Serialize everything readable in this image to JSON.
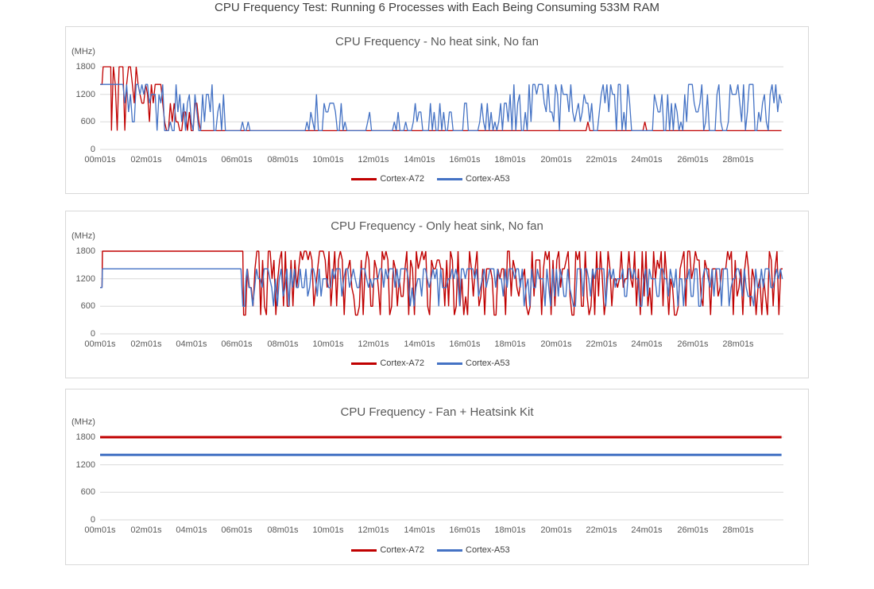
{
  "page": {
    "title": "CPU Frequency Test: Running 6 Processes with Each Being Consuming 533M RAM",
    "background": "#ffffff",
    "panel_border_color": "#d9d9d9",
    "gridline_color": "#d9d9d9",
    "axis_text_color": "#595959",
    "title_text_color": "#404040"
  },
  "chart_data": [
    {
      "type": "line",
      "title": "CPU Frequency - No heat sink, No fan",
      "ylabel": "(MHz)",
      "xlabel": "",
      "ylim": [
        0,
        1800
      ],
      "y_ticks": [
        1800,
        1200,
        600,
        0
      ],
      "x_tick_labels": [
        "00m01s",
        "02m01s",
        "04m01s",
        "06m01s",
        "08m01s",
        "10m01s",
        "12m01s",
        "14m01s",
        "16m01s",
        "18m01s",
        "20m01s",
        "22m01s",
        "24m01s",
        "26m01s",
        "28m01s"
      ],
      "x_tick_interval_s": 120,
      "x_range_s": [
        0,
        1800
      ],
      "grid": true,
      "legend_position": "bottom",
      "seed": 42,
      "series": [
        {
          "name": "Cortex-A72",
          "color": "#C00000",
          "stroke_width": 1.3,
          "segments": [
            {
              "t": [
                0,
                8
              ],
              "m": "flat",
              "v": 1416
            },
            {
              "t": [
                8,
                30
              ],
              "m": "flat",
              "v": 1800
            },
            {
              "t": [
                30,
                100
              ],
              "m": "noise",
              "levels": [
                1800,
                408,
                1008,
                1416
              ],
              "w": [
                5,
                1,
                1,
                1.5
              ]
            },
            {
              "t": [
                100,
                165
              ],
              "m": "noise",
              "levels": [
                1416,
                1200,
                1008,
                816,
                600,
                1800
              ],
              "w": [
                2.5,
                2,
                1.5,
                1,
                1,
                0.4
              ]
            },
            {
              "t": [
                165,
                265
              ],
              "m": "noise",
              "levels": [
                408,
                600,
                816,
                1008,
                1200
              ],
              "w": [
                2,
                1.5,
                1.2,
                1,
                0.8
              ]
            },
            {
              "t": [
                265,
                1300
              ],
              "m": "spikes",
              "base": 408,
              "p": 0.006,
              "levels": [
                600
              ]
            },
            {
              "t": [
                1300,
                1450
              ],
              "m": "spikes",
              "base": 408,
              "p": 0.05,
              "levels": [
                600,
                816
              ]
            },
            {
              "t": [
                1450,
                1800
              ],
              "m": "spikes",
              "base": 408,
              "p": 0.012,
              "levels": [
                600
              ]
            }
          ]
        },
        {
          "name": "Cortex-A53",
          "color": "#4472C4",
          "stroke_width": 1.3,
          "segments": [
            {
              "t": [
                0,
                60
              ],
              "m": "flat",
              "v": 1416
            },
            {
              "t": [
                60,
                150
              ],
              "m": "noise",
              "levels": [
                1416,
                1200,
                1008,
                816,
                600
              ],
              "w": [
                4,
                1.5,
                1,
                1,
                1
              ]
            },
            {
              "t": [
                150,
                330
              ],
              "m": "noise",
              "levels": [
                408,
                600,
                816,
                1008,
                1200,
                1416
              ],
              "w": [
                2.5,
                1.5,
                1.2,
                1,
                1,
                1
              ]
            },
            {
              "t": [
                330,
                555
              ],
              "m": "spikes",
              "base": 408,
              "p": 0.08,
              "levels": [
                600
              ]
            },
            {
              "t": [
                555,
                650
              ],
              "m": "spikes",
              "base": 408,
              "p": 0.55,
              "levels": [
                600,
                816,
                1008,
                1200
              ]
            },
            {
              "t": [
                650,
                710
              ],
              "m": "spikes",
              "base": 408,
              "p": 0.08,
              "levels": [
                600
              ]
            },
            {
              "t": [
                710,
                820
              ],
              "m": "spikes",
              "base": 408,
              "p": 0.4,
              "levels": [
                600,
                816,
                600
              ]
            },
            {
              "t": [
                820,
                930
              ],
              "m": "spikes",
              "base": 408,
              "p": 0.4,
              "levels": [
                600,
                816,
                1008
              ]
            },
            {
              "t": [
                930,
                1040
              ],
              "m": "spikes",
              "base": 408,
              "p": 0.35,
              "levels": [
                600,
                816,
                1008
              ]
            },
            {
              "t": [
                1040,
                1200
              ],
              "m": "spikes",
              "base": 408,
              "p": 0.7,
              "levels": [
                600,
                816,
                1008,
                1200,
                1416
              ]
            },
            {
              "t": [
                1200,
                1400
              ],
              "m": "spikes",
              "base": 408,
              "p": 0.85,
              "levels": [
                600,
                816,
                1008,
                1200,
                1416,
                1416
              ]
            },
            {
              "t": [
                1400,
                1460
              ],
              "m": "spikes",
              "base": 408,
              "p": 0.15,
              "levels": [
                600,
                816
              ]
            },
            {
              "t": [
                1460,
                1530
              ],
              "m": "spikes",
              "base": 408,
              "p": 0.45,
              "levels": [
                816,
                1008,
                1200
              ]
            },
            {
              "t": [
                1530,
                1800
              ],
              "m": "spikes",
              "base": 408,
              "p": 0.7,
              "levels": [
                600,
                816,
                1008,
                1200,
                1416
              ]
            }
          ]
        }
      ]
    },
    {
      "type": "line",
      "title": "CPU Frequency - Only heat sink, No fan",
      "ylabel": "(MHz)",
      "xlabel": "",
      "ylim": [
        0,
        1800
      ],
      "y_ticks": [
        1800,
        1200,
        600,
        0
      ],
      "x_tick_labels": [
        "00m01s",
        "02m01s",
        "04m01s",
        "06m01s",
        "08m01s",
        "10m01s",
        "12m01s",
        "14m01s",
        "16m01s",
        "18m01s",
        "20m01s",
        "22m01s",
        "24m01s",
        "26m01s",
        "28m01s"
      ],
      "x_tick_interval_s": 120,
      "x_range_s": [
        0,
        1800
      ],
      "grid": true,
      "legend_position": "bottom",
      "seed": 23,
      "series": [
        {
          "name": "Cortex-A72",
          "color": "#C00000",
          "stroke_width": 1.4,
          "segments": [
            {
              "t": [
                0,
                6
              ],
              "m": "flat",
              "v": 1008
            },
            {
              "t": [
                6,
                378
              ],
              "m": "flat",
              "v": 1800
            },
            {
              "t": [
                378,
                1800
              ],
              "m": "noise",
              "levels": [
                408,
                600,
                816,
                1008,
                1200,
                1416,
                1608,
                1800
              ],
              "w": [
                2,
                1.2,
                1,
                1,
                1.5,
                2.2,
                2.2,
                2.8
              ]
            }
          ]
        },
        {
          "name": "Cortex-A53",
          "color": "#4472C4",
          "stroke_width": 1.4,
          "segments": [
            {
              "t": [
                0,
                6
              ],
              "m": "flat",
              "v": 1008
            },
            {
              "t": [
                6,
                376
              ],
              "m": "flat",
              "v": 1416
            },
            {
              "t": [
                376,
                382
              ],
              "m": "flat",
              "v": 600
            },
            {
              "t": [
                382,
                1800
              ],
              "m": "noise",
              "levels": [
                600,
                816,
                1008,
                1200,
                1416
              ],
              "w": [
                0.8,
                1.2,
                1.8,
                3,
                4.5
              ]
            }
          ]
        }
      ]
    },
    {
      "type": "line",
      "title": "CPU Frequency - Fan + Heatsink Kit",
      "ylabel": "(MHz)",
      "xlabel": "",
      "ylim": [
        0,
        1800
      ],
      "y_ticks": [
        1800,
        1200,
        600,
        0
      ],
      "x_tick_labels": [
        "00m01s",
        "02m01s",
        "04m01s",
        "06m01s",
        "08m01s",
        "10m01s",
        "12m01s",
        "14m01s",
        "16m01s",
        "18m01s",
        "20m01s",
        "22m01s",
        "24m01s",
        "26m01s",
        "28m01s"
      ],
      "x_tick_interval_s": 120,
      "x_range_s": [
        0,
        1800
      ],
      "grid": true,
      "legend_position": "bottom",
      "seed": 7,
      "series": [
        {
          "name": "Cortex-A72",
          "color": "#C00000",
          "stroke_width": 3,
          "segments": [
            {
              "t": [
                0,
                1800
              ],
              "m": "flat",
              "v": 1800
            }
          ]
        },
        {
          "name": "Cortex-A53",
          "color": "#4472C4",
          "stroke_width": 3,
          "segments": [
            {
              "t": [
                0,
                1800
              ],
              "m": "flat",
              "v": 1416
            }
          ]
        }
      ]
    }
  ]
}
